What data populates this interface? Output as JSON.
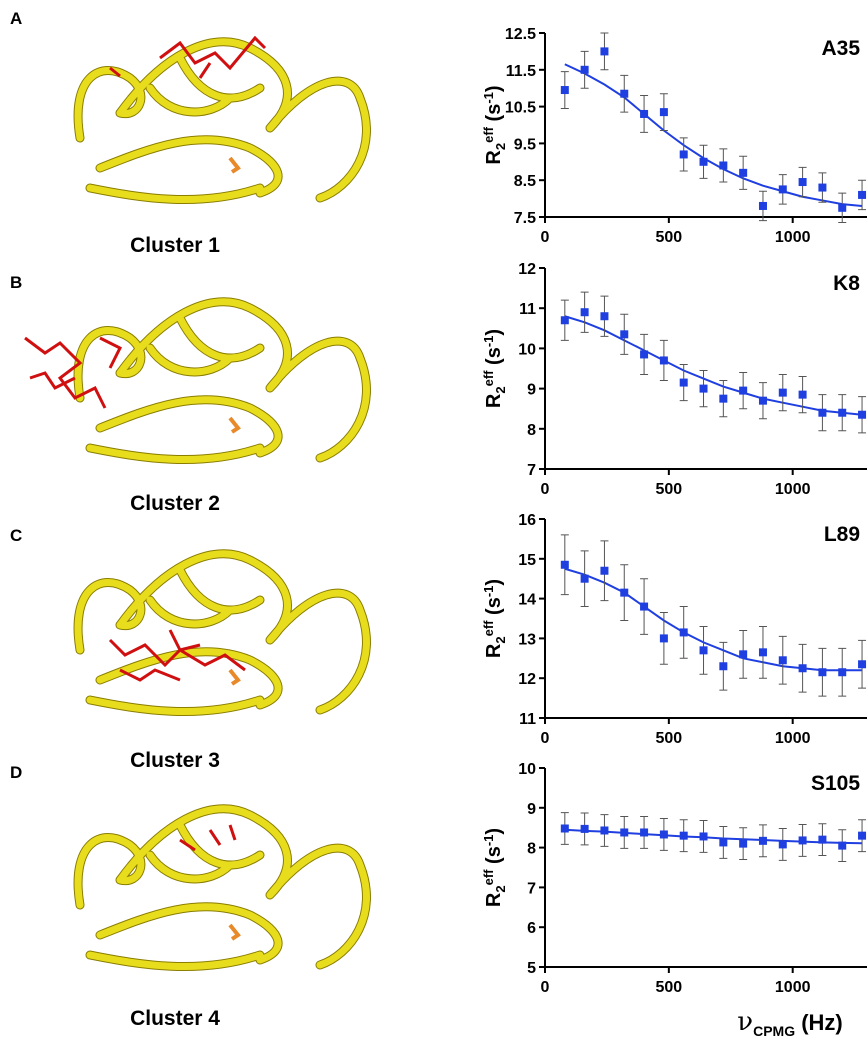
{
  "panels": [
    {
      "label": "A",
      "caption": "Cluster 1"
    },
    {
      "label": "B",
      "caption": "Cluster 2"
    },
    {
      "label": "C",
      "caption": "Cluster 3"
    },
    {
      "label": "D",
      "caption": "Cluster 4"
    }
  ],
  "x_label": [
    "ν",
    "CPMG",
    " (Hz)"
  ],
  "chart_data": [
    {
      "type": "line",
      "title": "A35",
      "y_label": [
        "R",
        "2",
        "eff",
        " (s",
        "-1",
        ")"
      ],
      "color": "#1f3fe0",
      "x": [
        80,
        160,
        240,
        320,
        400,
        480,
        560,
        640,
        720,
        800,
        880,
        960,
        1040,
        1120,
        1200,
        1280
      ],
      "values": [
        10.95,
        11.5,
        12.0,
        10.85,
        10.3,
        10.35,
        9.2,
        9.0,
        8.9,
        8.7,
        7.8,
        8.25,
        8.45,
        8.3,
        7.75,
        8.1
      ],
      "errors": [
        0.5,
        0.5,
        0.5,
        0.5,
        0.5,
        0.5,
        0.45,
        0.45,
        0.45,
        0.45,
        0.4,
        0.4,
        0.4,
        0.4,
        0.4,
        0.4
      ],
      "fit": [
        11.65,
        11.4,
        11.1,
        10.75,
        10.3,
        9.85,
        9.45,
        9.1,
        8.8,
        8.55,
        8.35,
        8.2,
        8.05,
        7.95,
        7.85,
        7.8
      ],
      "xlim": [
        0,
        1300
      ],
      "xticks": [
        0,
        500,
        1000
      ],
      "ylim": [
        7.5,
        12.5
      ],
      "yticks": [
        7.5,
        8.5,
        9.5,
        10.5,
        11.5,
        12.5
      ]
    },
    {
      "type": "line",
      "title": "K8",
      "y_label": [
        "R",
        "2",
        "eff",
        " (s",
        "-1",
        ")"
      ],
      "color": "#1f3fe0",
      "x": [
        80,
        160,
        240,
        320,
        400,
        480,
        560,
        640,
        720,
        800,
        880,
        960,
        1040,
        1120,
        1200,
        1280
      ],
      "values": [
        10.7,
        10.9,
        10.8,
        10.35,
        9.85,
        9.7,
        9.15,
        9.0,
        8.75,
        8.95,
        8.7,
        8.9,
        8.85,
        8.4,
        8.4,
        8.35
      ],
      "errors": [
        0.5,
        0.5,
        0.5,
        0.5,
        0.5,
        0.5,
        0.45,
        0.45,
        0.45,
        0.45,
        0.45,
        0.45,
        0.45,
        0.45,
        0.45,
        0.45
      ],
      "fit": [
        10.8,
        10.65,
        10.45,
        10.2,
        9.95,
        9.7,
        9.45,
        9.25,
        9.05,
        8.9,
        8.75,
        8.65,
        8.55,
        8.45,
        8.4,
        8.35
      ],
      "xlim": [
        0,
        1300
      ],
      "xticks": [
        0,
        500,
        1000
      ],
      "ylim": [
        7,
        12
      ],
      "yticks": [
        7,
        8,
        9,
        10,
        11,
        12
      ]
    },
    {
      "type": "line",
      "title": "L89",
      "y_label": [
        "R",
        "2",
        "eff",
        " (s",
        "-1",
        ")"
      ],
      "color": "#1f3fe0",
      "x": [
        80,
        160,
        240,
        320,
        400,
        480,
        560,
        640,
        720,
        800,
        880,
        960,
        1040,
        1120,
        1200,
        1280
      ],
      "values": [
        14.85,
        14.5,
        14.7,
        14.15,
        13.8,
        13.0,
        13.15,
        12.7,
        12.3,
        12.6,
        12.65,
        12.45,
        12.25,
        12.15,
        12.15,
        12.35
      ],
      "errors": [
        0.75,
        0.7,
        0.75,
        0.7,
        0.7,
        0.65,
        0.65,
        0.6,
        0.6,
        0.6,
        0.65,
        0.6,
        0.6,
        0.6,
        0.6,
        0.6
      ],
      "fit": [
        14.75,
        14.6,
        14.4,
        14.15,
        13.8,
        13.45,
        13.15,
        12.9,
        12.7,
        12.5,
        12.4,
        12.3,
        12.25,
        12.2,
        12.2,
        12.2
      ],
      "xlim": [
        0,
        1300
      ],
      "xticks": [
        0,
        500,
        1000
      ],
      "ylim": [
        11,
        16
      ],
      "yticks": [
        11,
        12,
        13,
        14,
        15,
        16
      ]
    },
    {
      "type": "line",
      "title": "S105",
      "y_label": [
        "R",
        "2",
        "eff",
        " (s",
        "-1",
        ")"
      ],
      "color": "#1f3fe0",
      "x": [
        80,
        160,
        240,
        320,
        400,
        480,
        560,
        640,
        720,
        800,
        880,
        960,
        1040,
        1120,
        1200,
        1280
      ],
      "values": [
        8.48,
        8.47,
        8.43,
        8.38,
        8.38,
        8.33,
        8.3,
        8.28,
        8.13,
        8.1,
        8.17,
        8.08,
        8.18,
        8.2,
        8.05,
        8.3
      ],
      "errors": [
        0.4,
        0.4,
        0.4,
        0.4,
        0.4,
        0.4,
        0.4,
        0.4,
        0.4,
        0.4,
        0.4,
        0.4,
        0.4,
        0.4,
        0.4,
        0.4
      ],
      "fit": [
        8.45,
        8.42,
        8.4,
        8.37,
        8.34,
        8.31,
        8.28,
        8.26,
        8.23,
        8.21,
        8.19,
        8.17,
        8.15,
        8.13,
        8.12,
        8.11
      ],
      "xlim": [
        0,
        1300
      ],
      "xticks": [
        0,
        500,
        1000
      ],
      "ylim": [
        5,
        10
      ],
      "yticks": [
        5,
        6,
        7,
        8,
        9,
        10
      ]
    }
  ]
}
